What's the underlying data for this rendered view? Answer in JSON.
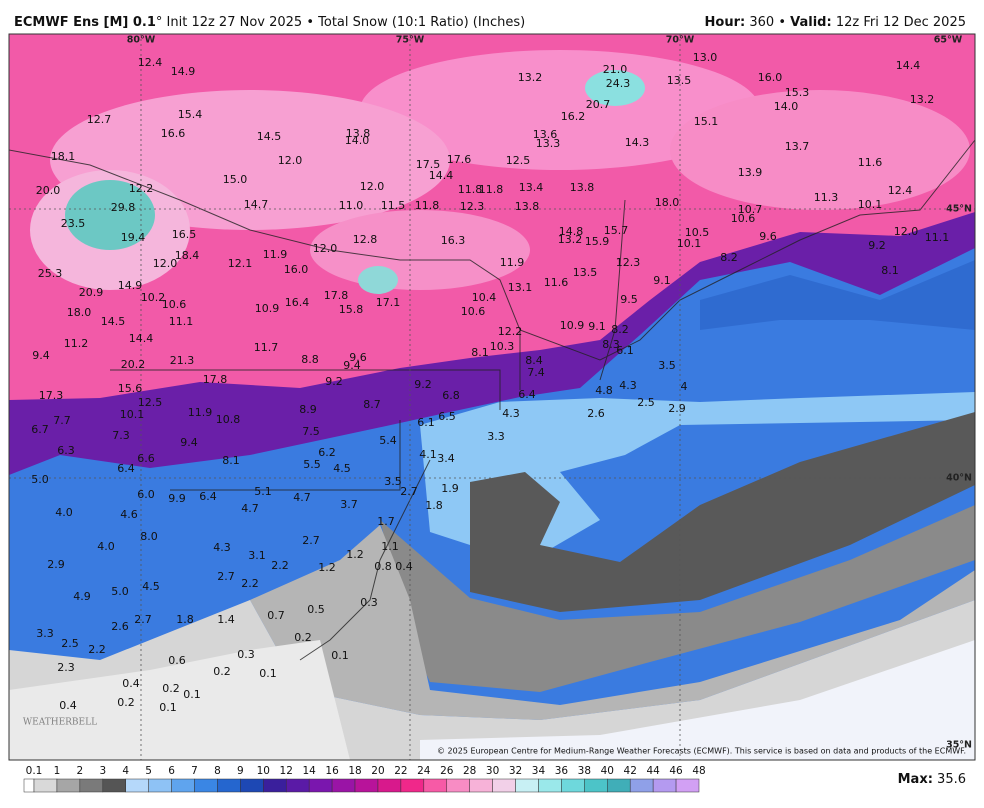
{
  "header": {
    "model": "ECMWF Ens [M] 0.1",
    "subtitle": "° Init 12z 27 Nov 2025 • Total Snow (10:1 Ratio) (Inches)",
    "hour_label": "Hour:",
    "hour": "360 •",
    "valid_label": "Valid:",
    "valid": "12z Fri 12 Dec 2025"
  },
  "map": {
    "longitudes": [
      "80°W",
      "75°W",
      "70°W",
      "65°W"
    ],
    "latitudes": [
      "45°N",
      "40°N",
      "35°N"
    ],
    "labels": [
      "12.4",
      "14.9",
      "13.2",
      "21.0",
      "24.3",
      "13.5",
      "13.0",
      "16.0",
      "14.4",
      "15.3",
      "14.0",
      "13.2",
      "20.7",
      "12.7",
      "15.4",
      "16.2",
      "15.1",
      "16.6",
      "14.5",
      "13.8",
      "14.0",
      "13.6",
      "13.3",
      "14.3",
      "13.7",
      "18.1",
      "12.0",
      "17.5",
      "17.6",
      "12.5",
      "11.6",
      "13.9",
      "14.4",
      "15.0",
      "12.0",
      "11.8",
      "11.8",
      "13.4",
      "13.8",
      "20.0",
      "12.2",
      "12.4",
      "11.3",
      "29.8",
      "14.7",
      "11.0",
      "11.5",
      "11.8",
      "12.3",
      "13.8",
      "18.0",
      "10.1",
      "10.7",
      "10.6",
      "12.0",
      "23.5",
      "16.5",
      "14.8",
      "15.7",
      "10.5",
      "9.6",
      "11.1",
      "19.4",
      "13.2",
      "15.9",
      "10.1",
      "9.2",
      "16.3",
      "12.8",
      "12.0",
      "11.9",
      "18.4",
      "12.0",
      "12.1",
      "16.0",
      "11.9",
      "12.3",
      "8.2",
      "8.1",
      "25.3",
      "13.5",
      "9.1",
      "14.9",
      "20.9",
      "17.8",
      "17.1",
      "13.1",
      "11.6",
      "10.2",
      "10.6",
      "16.4",
      "15.8",
      "10.9",
      "10.4",
      "9.5",
      "18.0",
      "10.6",
      "14.5",
      "11.1",
      "10.9",
      "9.1",
      "8.2",
      "14.4",
      "12.2",
      "11.2",
      "11.7",
      "10.3",
      "8.3",
      "6.1",
      "8.1",
      "9.4",
      "8.8",
      "9.6",
      "9.4",
      "8.4",
      "7.4",
      "20.2",
      "21.3",
      "3.5",
      "17.8",
      "9.2",
      "9.2",
      "4.8",
      "4.3",
      "4",
      "15.6",
      "6.8",
      "6.4",
      "17.3",
      "8.7",
      "12.5",
      "2.5",
      "8.9",
      "2.9",
      "6.5",
      "4.3",
      "2.6",
      "10.1",
      "11.9",
      "10.8",
      "7.7",
      "6.1",
      "6.7",
      "7.5",
      "7.3",
      "3.3",
      "5.4",
      "9.4",
      "6.3",
      "4.1",
      "6.2",
      "3.4",
      "8.1",
      "6.6",
      "5.5",
      "4.5",
      "6.4",
      "5.0",
      "3.5",
      "2.7",
      "5.1",
      "6.0",
      "9.9",
      "6.4",
      "4.7",
      "1.9",
      "3.7",
      "1.8",
      "4.0",
      "4.6",
      "4.7",
      "1.7",
      "8.0",
      "2.7",
      "4.0",
      "4.3",
      "3.1",
      "1.1",
      "1.2",
      "2.9",
      "0.8",
      "0.4",
      "2.7",
      "2.2",
      "2.2",
      "1.2",
      "4.9",
      "5.0",
      "4.5",
      "0.3",
      "0.5",
      "2.7",
      "1.8",
      "1.4",
      "0.7",
      "2.6",
      "0.2",
      "3.3",
      "2.5",
      "2.2",
      "0.3",
      "0.1",
      "0.6",
      "2.3",
      "0.2",
      "0.1",
      "0.4",
      "0.2",
      "0.1",
      "0.4",
      "0.2",
      "0.1"
    ],
    "logo": "WEATHERBELL",
    "copyright": "© 2025 European Centre for Medium-Range Weather Forecasts (ECMWF). This service is based on data and products of the ECMWF."
  },
  "colorbar": {
    "labels": [
      "0.1",
      "1",
      "2",
      "3",
      "4",
      "5",
      "6",
      "7",
      "8",
      "9",
      "10",
      "12",
      "14",
      "16",
      "18",
      "20",
      "22",
      "24",
      "26",
      "28",
      "30",
      "32",
      "34",
      "36",
      "38",
      "40",
      "42",
      "44",
      "46",
      "48"
    ]
  },
  "footer": {
    "max_label": "Max:",
    "max": "35.6"
  }
}
